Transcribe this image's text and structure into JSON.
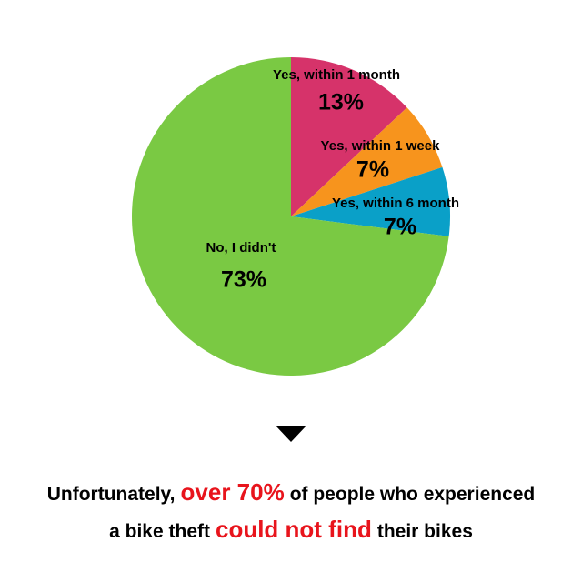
{
  "chart_data": {
    "type": "pie",
    "categories": [
      "Yes, within 1 month",
      "Yes, within 1 week",
      "Yes, within 6 month",
      "No, I didn't"
    ],
    "values": [
      13,
      7,
      7,
      73
    ],
    "value_labels": [
      "13%",
      "7%",
      "7%",
      "73%"
    ],
    "colors": [
      "#d6336a",
      "#f7941d",
      "#0aa0c8",
      "#7ac943"
    ]
  },
  "caption": {
    "lines": [
      [
        "Unfortunately,",
        "over 70%",
        "of people who experienced"
      ],
      [
        "a bike theft",
        "could not find",
        "their bikes"
      ]
    ]
  }
}
